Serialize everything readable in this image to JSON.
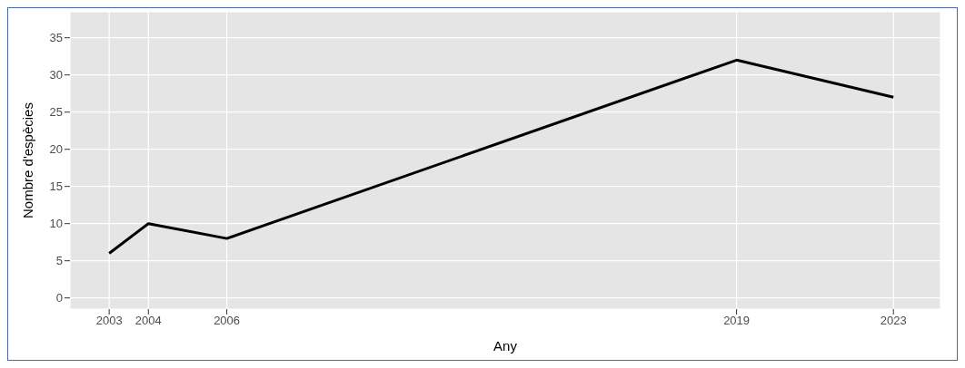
{
  "chart_data": {
    "type": "line",
    "xlabel": "Any",
    "ylabel": "Nombre d'espècies",
    "x": [
      2003,
      2004,
      2006,
      2019,
      2023
    ],
    "series": [
      {
        "color": "#000000",
        "values": [
          6,
          10,
          8,
          32,
          27
        ]
      }
    ],
    "xlim": [
      2002,
      2024.2
    ],
    "xticks": [
      2003,
      2004,
      2006,
      2019,
      2023
    ],
    "ylim": [
      -1.5,
      38.5
    ],
    "yticks": [
      0,
      5,
      10,
      15,
      20,
      25,
      30,
      35
    ],
    "grid": true,
    "legend": false,
    "marker": "none",
    "line_style": "solid"
  }
}
